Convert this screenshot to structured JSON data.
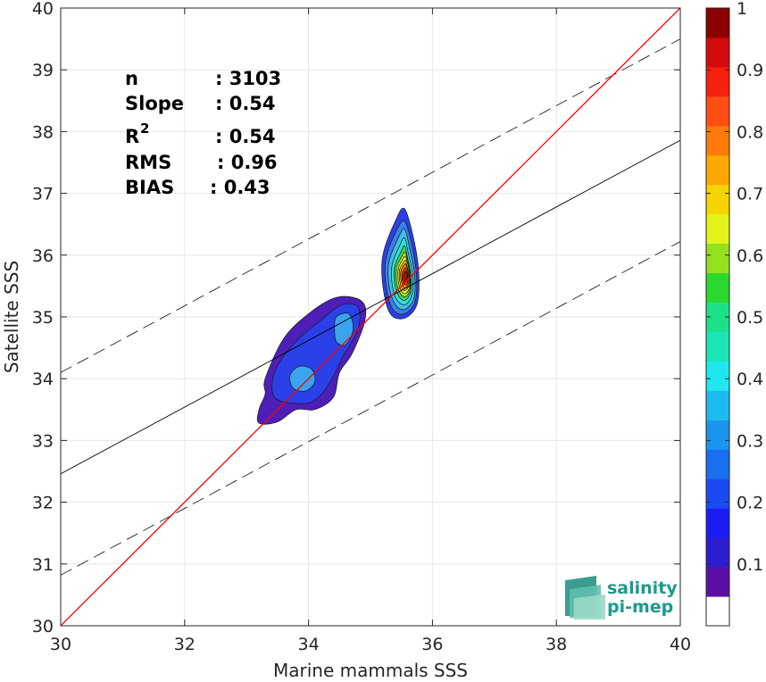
{
  "chart_data": {
    "type": "heatmap",
    "subtype": "scatter-density-contour",
    "xlabel": "Marine mammals SSS",
    "ylabel": "Satellite SSS",
    "xlim": [
      30,
      40
    ],
    "ylim": [
      30,
      40
    ],
    "xticks": [
      "30",
      "32",
      "34",
      "36",
      "38",
      "40"
    ],
    "yticks": [
      "30",
      "31",
      "32",
      "33",
      "34",
      "35",
      "36",
      "37",
      "38",
      "39",
      "40"
    ],
    "grid": true,
    "stats": [
      {
        "label": "n",
        "value": ": 3103"
      },
      {
        "label": "Slope",
        "value": ": 0.54"
      },
      {
        "label": "R",
        "sup": "2",
        "value": ": 0.54"
      },
      {
        "label": "RMS",
        "value": ": 0.96"
      },
      {
        "label": "BIAS",
        "value": ": 0.43"
      }
    ],
    "lines": {
      "identity": {
        "x": [
          30,
          40
        ],
        "y": [
          30,
          40
        ],
        "color": "#ff0000"
      },
      "fit": {
        "x": [
          30,
          40
        ],
        "y": [
          32.46,
          37.86
        ],
        "color": "#000000"
      },
      "fit_upper": {
        "x": [
          30,
          40
        ],
        "y": [
          34.1,
          39.5
        ],
        "dashed": true
      },
      "fit_lower": {
        "x": [
          30,
          40
        ],
        "y": [
          30.82,
          36.22
        ],
        "dashed": true
      }
    },
    "contours": [
      {
        "level": 0.05,
        "color": "#4d1fb8",
        "path": [
          [
            33.2,
            33.28
          ],
          [
            33.5,
            33.3
          ],
          [
            33.8,
            33.5
          ],
          [
            34.1,
            33.5
          ],
          [
            34.4,
            33.7
          ],
          [
            34.5,
            34.1
          ],
          [
            34.7,
            34.4
          ],
          [
            34.9,
            34.9
          ],
          [
            34.9,
            35.2
          ],
          [
            34.7,
            35.32
          ],
          [
            34.4,
            35.3
          ],
          [
            34.0,
            35.05
          ],
          [
            33.6,
            34.65
          ],
          [
            33.3,
            34.0
          ],
          [
            33.3,
            33.75
          ],
          [
            33.2,
            33.5
          ]
        ]
      },
      {
        "level": 0.1,
        "color": "#2a40e8",
        "path": [
          [
            33.45,
            33.7
          ],
          [
            33.8,
            33.6
          ],
          [
            34.1,
            33.65
          ],
          [
            34.35,
            33.95
          ],
          [
            34.55,
            34.35
          ],
          [
            34.8,
            34.8
          ],
          [
            34.8,
            35.15
          ],
          [
            34.55,
            35.2
          ],
          [
            34.2,
            34.95
          ],
          [
            33.75,
            34.55
          ],
          [
            33.45,
            34.1
          ]
        ]
      },
      {
        "level": 0.25,
        "color": "#3aa5ee",
        "path": [
          [
            33.75,
            33.85
          ],
          [
            33.95,
            33.8
          ],
          [
            34.1,
            33.95
          ],
          [
            34.05,
            34.15
          ],
          [
            33.85,
            34.2
          ],
          [
            33.7,
            34.05
          ]
        ]
      },
      {
        "level": 0.25,
        "color": "#3aa5ee",
        "path": [
          [
            34.45,
            34.6
          ],
          [
            34.6,
            34.55
          ],
          [
            34.72,
            34.8
          ],
          [
            34.65,
            35.05
          ],
          [
            34.45,
            35.0
          ],
          [
            34.42,
            34.8
          ]
        ]
      },
      {
        "level": 0.1,
        "color": "#2a40e8",
        "path": [
          [
            35.32,
            35.05
          ],
          [
            35.55,
            34.98
          ],
          [
            35.75,
            35.2
          ],
          [
            35.78,
            35.7
          ],
          [
            35.7,
            36.25
          ],
          [
            35.55,
            36.75
          ],
          [
            35.4,
            36.55
          ],
          [
            35.2,
            36.0
          ],
          [
            35.2,
            35.5
          ]
        ]
      },
      {
        "level": 0.2,
        "color": "#3a7fe8",
        "path": [
          [
            35.36,
            35.12
          ],
          [
            35.55,
            35.05
          ],
          [
            35.72,
            35.25
          ],
          [
            35.74,
            35.7
          ],
          [
            35.66,
            36.2
          ],
          [
            35.55,
            36.55
          ],
          [
            35.42,
            36.4
          ],
          [
            35.25,
            35.95
          ],
          [
            35.25,
            35.5
          ]
        ]
      },
      {
        "level": 0.3,
        "color": "#3fbfe8",
        "path": [
          [
            35.4,
            35.2
          ],
          [
            35.55,
            35.12
          ],
          [
            35.7,
            35.3
          ],
          [
            35.71,
            35.7
          ],
          [
            35.63,
            36.12
          ],
          [
            35.55,
            36.42
          ],
          [
            35.45,
            36.28
          ],
          [
            35.3,
            35.9
          ],
          [
            35.3,
            35.5
          ]
        ]
      },
      {
        "level": 0.4,
        "color": "#30e2d8",
        "path": [
          [
            35.43,
            35.27
          ],
          [
            35.56,
            35.2
          ],
          [
            35.67,
            35.36
          ],
          [
            35.68,
            35.7
          ],
          [
            35.61,
            36.03
          ],
          [
            35.55,
            36.28
          ],
          [
            35.47,
            36.15
          ],
          [
            35.35,
            35.85
          ],
          [
            35.35,
            35.52
          ]
        ]
      },
      {
        "level": 0.5,
        "color": "#3cd860",
        "path": [
          [
            35.46,
            35.33
          ],
          [
            35.56,
            35.27
          ],
          [
            35.65,
            35.41
          ],
          [
            35.65,
            35.7
          ],
          [
            35.6,
            35.95
          ],
          [
            35.55,
            36.15
          ],
          [
            35.49,
            36.05
          ],
          [
            35.39,
            35.82
          ],
          [
            35.39,
            35.55
          ]
        ]
      },
      {
        "level": 0.6,
        "color": "#b8e02c",
        "path": [
          [
            35.48,
            35.38
          ],
          [
            35.57,
            35.33
          ],
          [
            35.64,
            35.45
          ],
          [
            35.64,
            35.7
          ],
          [
            35.6,
            35.9
          ],
          [
            35.56,
            36.05
          ],
          [
            35.5,
            35.97
          ],
          [
            35.42,
            35.8
          ],
          [
            35.42,
            35.57
          ]
        ]
      },
      {
        "level": 0.65,
        "color": "#f5f52a",
        "path": [
          [
            35.5,
            35.42
          ],
          [
            35.57,
            35.38
          ],
          [
            35.63,
            35.48
          ],
          [
            35.63,
            35.7
          ],
          [
            35.6,
            35.86
          ],
          [
            35.56,
            35.98
          ],
          [
            35.51,
            35.91
          ],
          [
            35.45,
            35.78
          ],
          [
            35.45,
            35.58
          ]
        ]
      },
      {
        "level": 0.7,
        "color": "#ffc00a",
        "path": [
          [
            35.51,
            35.46
          ],
          [
            35.57,
            35.43
          ],
          [
            35.62,
            35.52
          ],
          [
            35.62,
            35.7
          ],
          [
            35.59,
            35.83
          ],
          [
            35.56,
            35.92
          ],
          [
            35.52,
            35.86
          ],
          [
            35.47,
            35.76
          ],
          [
            35.47,
            35.6
          ]
        ]
      },
      {
        "level": 0.8,
        "color": "#ff7f15",
        "path": [
          [
            35.52,
            35.5
          ],
          [
            35.57,
            35.47
          ],
          [
            35.61,
            35.55
          ],
          [
            35.61,
            35.7
          ],
          [
            35.59,
            35.8
          ],
          [
            35.56,
            35.86
          ],
          [
            35.53,
            35.82
          ],
          [
            35.49,
            35.74
          ],
          [
            35.49,
            35.62
          ]
        ]
      },
      {
        "level": 0.9,
        "color": "#ff3010",
        "path": [
          [
            35.53,
            35.54
          ],
          [
            35.58,
            35.52
          ],
          [
            35.6,
            35.58
          ],
          [
            35.6,
            35.7
          ],
          [
            35.58,
            35.77
          ],
          [
            35.56,
            35.8
          ],
          [
            35.54,
            35.77
          ],
          [
            35.51,
            35.7
          ],
          [
            35.51,
            35.62
          ]
        ]
      },
      {
        "level": 1.0,
        "color": "#a80f0f",
        "path": [
          [
            35.54,
            35.58
          ],
          [
            35.58,
            35.57
          ],
          [
            35.59,
            35.62
          ],
          [
            35.59,
            35.7
          ],
          [
            35.57,
            35.74
          ],
          [
            35.55,
            35.73
          ],
          [
            35.53,
            35.68
          ],
          [
            35.53,
            35.62
          ]
        ]
      }
    ],
    "colorbar": {
      "ticks": [
        "0.1",
        "0.2",
        "0.3",
        "0.4",
        "0.5",
        "0.6",
        "0.7",
        "0.8",
        "0.9",
        "1"
      ],
      "colors": [
        "#ffffff",
        "#5b0fa8",
        "#2a1fd0",
        "#1a1cf5",
        "#1a4bf2",
        "#1a6ff0",
        "#1b95ef",
        "#1cbcef",
        "#1ee7ef",
        "#1ae5b5",
        "#1ae28a",
        "#2bd92e",
        "#93e01f",
        "#e4f21c",
        "#f7d400",
        "#ffa800",
        "#ff7a0a",
        "#ff4e14",
        "#f8200f",
        "#d40b0b",
        "#8c0000"
      ],
      "range": [
        0,
        1
      ]
    },
    "logo": {
      "line1": "salinity",
      "line2": "pi-mep"
    }
  }
}
